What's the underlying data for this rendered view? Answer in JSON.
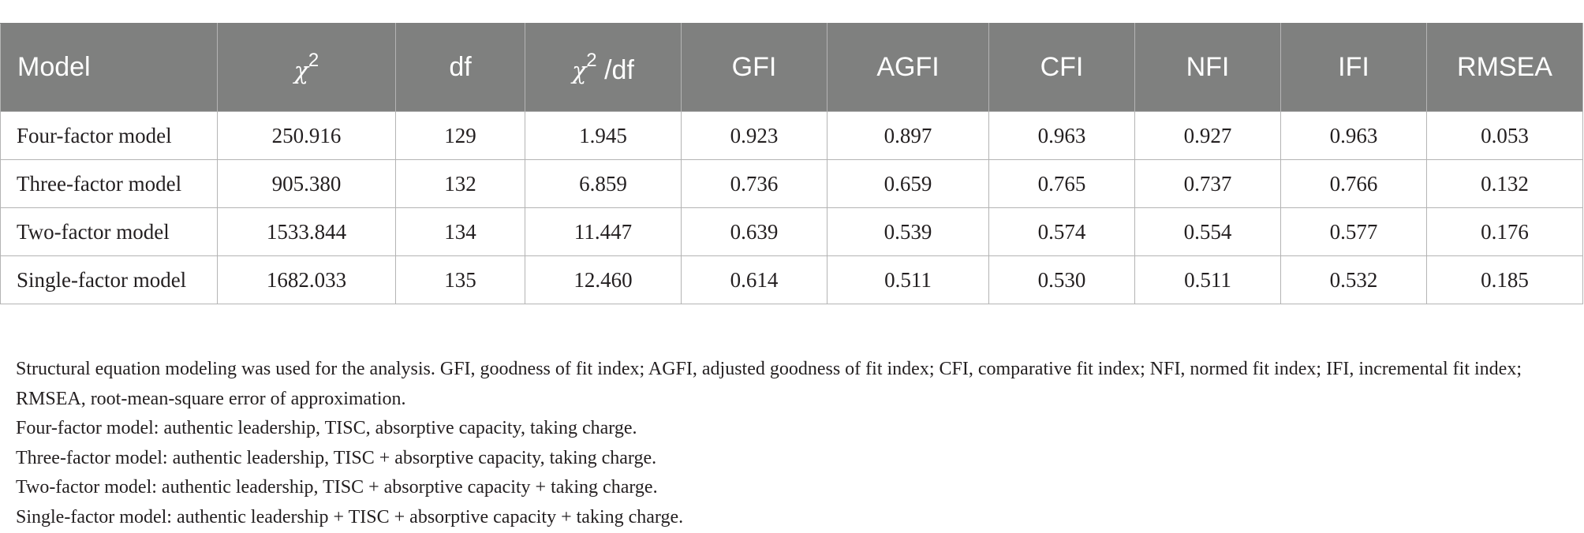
{
  "table": {
    "headers": {
      "model": "Model",
      "chi2_symbol": "χ",
      "chi2_exp": "2",
      "df": "df",
      "chi2df_symbol": "χ",
      "chi2df_exp": "2",
      "chi2df_suffix": " /df",
      "gfi": "GFI",
      "agfi": "AGFI",
      "cfi": "CFI",
      "nfi": "NFI",
      "ifi": "IFI",
      "rmsea": "RMSEA"
    },
    "rows": [
      [
        "Four-factor model",
        "250.916",
        "129",
        "1.945",
        "0.923",
        "0.897",
        "0.963",
        "0.927",
        "0.963",
        "0.053"
      ],
      [
        "Three-factor model",
        "905.380",
        "132",
        "6.859",
        "0.736",
        "0.659",
        "0.765",
        "0.737",
        "0.766",
        "0.132"
      ],
      [
        "Two-factor model",
        "1533.844",
        "134",
        "11.447",
        "0.639",
        "0.539",
        "0.574",
        "0.554",
        "0.577",
        "0.176"
      ],
      [
        "Single-factor model",
        "1682.033",
        "135",
        "12.460",
        "0.614",
        "0.511",
        "0.530",
        "0.511",
        "0.532",
        "0.185"
      ]
    ]
  },
  "notes": [
    "Structural equation modeling was used for the analysis. GFI, goodness of fit index; AGFI, adjusted goodness of fit index; CFI, comparative fit index; NFI, normed fit index; IFI, incremental fit index; RMSEA, root-mean-square error of approximation.",
    "Four-factor model: authentic leadership, TISC, absorptive capacity, taking charge.",
    "Three-factor model: authentic leadership, TISC + absorptive capacity, taking charge.",
    "Two-factor model: authentic leadership, TISC + absorptive capacity + taking charge.",
    "Single-factor model: authentic leadership + TISC + absorptive capacity + taking charge."
  ]
}
